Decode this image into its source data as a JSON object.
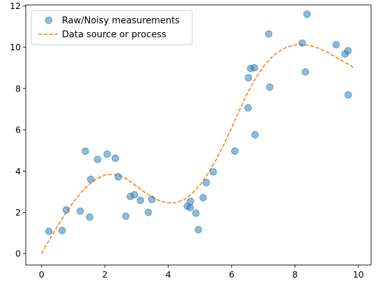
{
  "chart_data": {
    "type": "scatter",
    "title": "",
    "xlabel": "",
    "ylabel": "",
    "xlim": [
      -0.5,
      10.4
    ],
    "ylim": [
      -0.55,
      12.05
    ],
    "xticks": [
      0,
      2,
      4,
      6,
      8,
      10
    ],
    "yticks": [
      0,
      2,
      4,
      6,
      8,
      10,
      12
    ],
    "grid": false,
    "legend_position": "top-left",
    "series": [
      {
        "name": "Raw/Noisy measurements",
        "kind": "scatter",
        "color": "#1f77b4",
        "points": [
          [
            0.23,
            1.08
          ],
          [
            0.65,
            1.12
          ],
          [
            0.78,
            2.12
          ],
          [
            1.22,
            2.06
          ],
          [
            1.38,
            4.96
          ],
          [
            1.52,
            1.77
          ],
          [
            1.55,
            3.6
          ],
          [
            1.77,
            4.56
          ],
          [
            2.07,
            4.82
          ],
          [
            2.33,
            4.62
          ],
          [
            2.42,
            3.72
          ],
          [
            2.66,
            1.81
          ],
          [
            2.8,
            2.77
          ],
          [
            2.93,
            2.85
          ],
          [
            3.12,
            2.58
          ],
          [
            3.37,
            1.99
          ],
          [
            3.48,
            2.63
          ],
          [
            4.6,
            2.3
          ],
          [
            4.69,
            2.23
          ],
          [
            4.7,
            2.53
          ],
          [
            4.87,
            1.96
          ],
          [
            4.95,
            1.16
          ],
          [
            5.1,
            2.71
          ],
          [
            5.2,
            3.44
          ],
          [
            5.42,
            3.96
          ],
          [
            6.1,
            4.97
          ],
          [
            6.52,
            7.06
          ],
          [
            6.53,
            8.52
          ],
          [
            6.6,
            8.97
          ],
          [
            6.72,
            9.0
          ],
          [
            6.74,
            5.76
          ],
          [
            7.17,
            10.64
          ],
          [
            7.2,
            8.07
          ],
          [
            8.23,
            10.2
          ],
          [
            8.33,
            8.8
          ],
          [
            8.38,
            11.6
          ],
          [
            9.3,
            10.12
          ],
          [
            9.58,
            9.67
          ],
          [
            9.67,
            9.83
          ],
          [
            9.68,
            7.69
          ]
        ]
      },
      {
        "name": "Data source or process",
        "kind": "line",
        "style": "dashed",
        "color": "#ff7f0e",
        "points": [
          [
            0,
            0.0
          ],
          [
            0.25,
            0.68
          ],
          [
            0.5,
            1.32
          ],
          [
            0.75,
            1.94
          ],
          [
            1.0,
            2.49
          ],
          [
            1.25,
            2.97
          ],
          [
            1.5,
            3.36
          ],
          [
            1.75,
            3.64
          ],
          [
            2.0,
            3.81
          ],
          [
            2.25,
            3.84
          ],
          [
            2.5,
            3.76
          ],
          [
            2.75,
            3.55
          ],
          [
            3.0,
            3.27
          ],
          [
            3.25,
            2.98
          ],
          [
            3.5,
            2.72
          ],
          [
            3.75,
            2.54
          ],
          [
            4.0,
            2.46
          ],
          [
            4.25,
            2.47
          ],
          [
            4.5,
            2.62
          ],
          [
            4.75,
            2.91
          ],
          [
            5.0,
            3.32
          ],
          [
            5.25,
            3.87
          ],
          [
            5.5,
            4.52
          ],
          [
            5.75,
            5.27
          ],
          [
            6.0,
            6.1
          ],
          [
            6.25,
            6.96
          ],
          [
            6.5,
            7.78
          ],
          [
            6.75,
            8.5
          ],
          [
            7.0,
            9.06
          ],
          [
            7.25,
            9.5
          ],
          [
            7.5,
            9.8
          ],
          [
            7.75,
            10.01
          ],
          [
            8.0,
            10.11
          ],
          [
            8.25,
            10.13
          ],
          [
            8.5,
            10.07
          ],
          [
            8.75,
            9.95
          ],
          [
            9.0,
            9.77
          ],
          [
            9.25,
            9.55
          ],
          [
            9.5,
            9.33
          ],
          [
            9.75,
            9.11
          ],
          [
            9.87,
            9.0
          ]
        ]
      }
    ]
  }
}
